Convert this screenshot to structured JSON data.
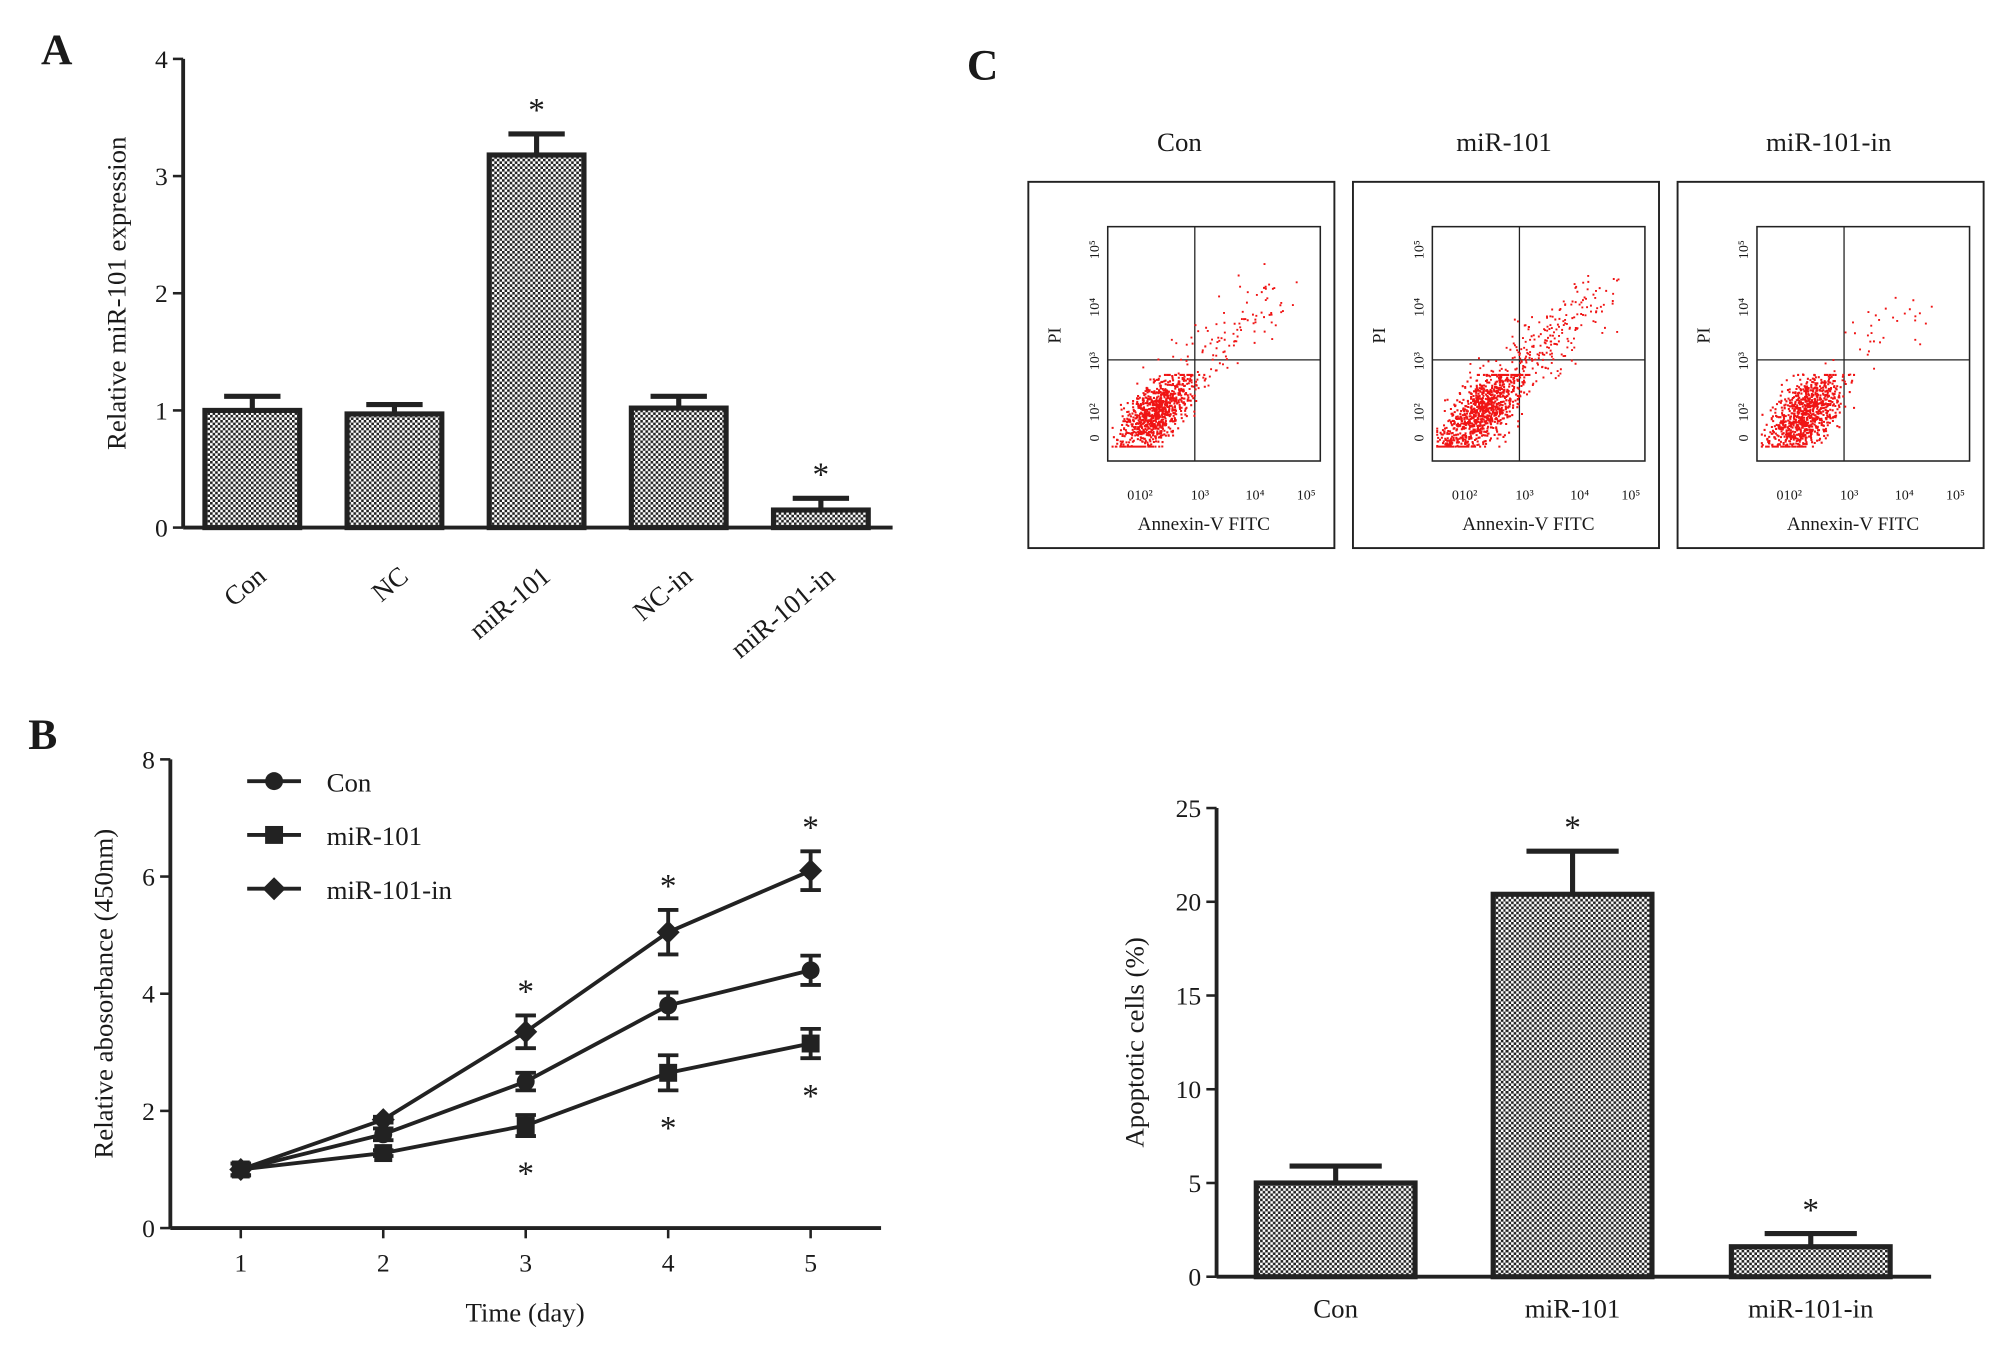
{
  "panels": {
    "a": "A",
    "b": "B",
    "c": "C"
  },
  "chart_data": [
    {
      "id": "A",
      "type": "bar",
      "categories": [
        "Con",
        "NC",
        "miR-101",
        "NC-in",
        "miR-101-in"
      ],
      "values": [
        1.0,
        0.97,
        3.18,
        1.02,
        0.15
      ],
      "errors": [
        0.12,
        0.08,
        0.18,
        0.1,
        0.1
      ],
      "significant": [
        false,
        false,
        true,
        false,
        true
      ],
      "ylabel": "Relative miR-101 expression",
      "xlabel": "",
      "ylim": [
        0,
        4
      ],
      "yticks": [
        "0",
        "1",
        "2",
        "3",
        "4"
      ]
    },
    {
      "id": "B",
      "type": "line",
      "x": [
        1,
        2,
        3,
        4,
        5
      ],
      "xticks": [
        "1",
        "2",
        "3",
        "4",
        "5"
      ],
      "yticks": [
        "0",
        "2",
        "4",
        "6",
        "8"
      ],
      "ylim": [
        0,
        8
      ],
      "xlabel": "Time (day)",
      "ylabel": "Relative abosorbance (450nm)",
      "legend_position": "top-left",
      "series": [
        {
          "name": "Con",
          "marker": "circle",
          "values": [
            1.0,
            1.6,
            2.5,
            3.8,
            4.4
          ],
          "errors": [
            0.1,
            0.1,
            0.15,
            0.22,
            0.25
          ],
          "significant": [
            false,
            false,
            false,
            false,
            false
          ]
        },
        {
          "name": "miR-101",
          "marker": "square",
          "values": [
            1.0,
            1.28,
            1.75,
            2.65,
            3.15
          ],
          "errors": [
            0.1,
            0.05,
            0.18,
            0.3,
            0.25
          ],
          "significant": [
            false,
            false,
            true,
            true,
            true
          ]
        },
        {
          "name": "miR-101-in",
          "marker": "diamond",
          "values": [
            1.0,
            1.85,
            3.35,
            5.05,
            6.1
          ],
          "errors": [
            0.1,
            0.05,
            0.28,
            0.38,
            0.33
          ],
          "significant": [
            false,
            false,
            true,
            true,
            true
          ]
        }
      ]
    },
    {
      "id": "C-flow",
      "type": "scatter",
      "panels": [
        "Con",
        "miR-101",
        "miR-101-in"
      ],
      "xlabel": "Annexin-V FITC",
      "ylabel": "PI",
      "xticks": [
        "0",
        "10²",
        "10³",
        "10⁴",
        "10⁵"
      ],
      "yticks": [
        "0",
        "10²",
        "10³",
        "10⁴",
        "10⁵"
      ]
    },
    {
      "id": "C-bar",
      "type": "bar",
      "categories": [
        "Con",
        "miR-101",
        "miR-101-in"
      ],
      "values": [
        5.0,
        20.4,
        1.6
      ],
      "errors": [
        0.9,
        2.3,
        0.7
      ],
      "significant": [
        false,
        true,
        true
      ],
      "ylabel": "Apoptotic cells (%)",
      "xlabel": "",
      "ylim": [
        0,
        25
      ],
      "yticks": [
        "0",
        "5",
        "10",
        "15",
        "20",
        "25"
      ]
    }
  ],
  "star": "*"
}
